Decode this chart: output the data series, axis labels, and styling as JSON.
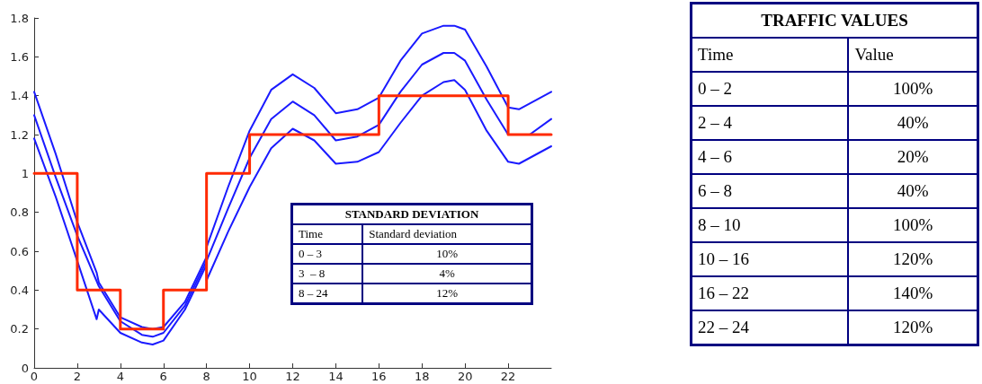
{
  "chart_data": {
    "type": "line",
    "xlim": [
      0,
      24
    ],
    "xticks": [
      0,
      2,
      4,
      6,
      8,
      10,
      12,
      14,
      16,
      18,
      20,
      22
    ],
    "ylim": [
      0,
      1.8
    ],
    "yticks": [
      0,
      0.2,
      0.4,
      0.6,
      0.8,
      1,
      1.2,
      1.4,
      1.6,
      1.8
    ],
    "grid": false,
    "marker": "none",
    "line_style": "solid",
    "series": [
      {
        "color": "#1a1aff",
        "x": [
          0,
          1,
          2,
          2.9,
          3,
          4,
          5,
          5.5,
          6,
          7,
          8,
          8,
          9,
          10,
          11,
          12,
          13,
          14,
          15,
          16,
          17,
          18,
          19,
          19.5,
          20,
          21,
          22,
          22.5,
          23,
          24
        ],
        "values": [
          1.42,
          1.1,
          0.75,
          0.49,
          0.44,
          0.26,
          0.21,
          0.2,
          0.21,
          0.34,
          0.57,
          0.62,
          0.93,
          1.22,
          1.43,
          1.51,
          1.44,
          1.31,
          1.33,
          1.39,
          1.58,
          1.72,
          1.76,
          1.76,
          1.74,
          1.55,
          1.34,
          1.33,
          1.36,
          1.42
        ]
      },
      {
        "color": "#1a1aff",
        "x": [
          0,
          1,
          2,
          3,
          4,
          5,
          5.5,
          6,
          7,
          8,
          9,
          10,
          11,
          12,
          13,
          14,
          15,
          16,
          17,
          18,
          19,
          19.5,
          20,
          21,
          22,
          23,
          24
        ],
        "values": [
          1.3,
          0.98,
          0.68,
          0.42,
          0.24,
          0.17,
          0.16,
          0.18,
          0.32,
          0.55,
          0.82,
          1.08,
          1.28,
          1.37,
          1.3,
          1.17,
          1.19,
          1.25,
          1.42,
          1.56,
          1.62,
          1.62,
          1.58,
          1.38,
          1.2,
          1.2,
          1.28
        ]
      },
      {
        "color": "#1a1aff",
        "x": [
          0,
          1,
          2,
          2.9,
          3,
          4,
          5,
          5.5,
          6,
          7,
          8,
          8,
          9,
          10,
          11,
          12,
          13,
          14,
          15,
          16,
          17,
          18,
          19,
          19.5,
          20,
          21,
          22,
          22.5,
          23,
          24
        ],
        "values": [
          1.18,
          0.88,
          0.55,
          0.25,
          0.3,
          0.18,
          0.13,
          0.12,
          0.14,
          0.3,
          0.53,
          0.45,
          0.7,
          0.93,
          1.13,
          1.23,
          1.17,
          1.05,
          1.06,
          1.11,
          1.26,
          1.4,
          1.47,
          1.48,
          1.43,
          1.22,
          1.06,
          1.05,
          1.08,
          1.14
        ]
      },
      {
        "type": "step",
        "color": "#ff2a00",
        "x": [
          0,
          2,
          4,
          6,
          8,
          10,
          16,
          22,
          24
        ],
        "values": [
          1,
          0.4,
          0.2,
          0.4,
          1,
          1.2,
          1.4,
          1.2,
          1.2
        ]
      }
    ],
    "annotations": [
      "STANDARD DEVIATION",
      "Time",
      "Standard deviation",
      "0 – 3",
      "10%",
      "3  – 8",
      "4%",
      "8 – 24",
      "12%",
      "TRAFFIC VALUES",
      "Time",
      "Value",
      "0 – 2",
      "100%",
      "2 – 4",
      "40%",
      "4 – 6",
      "20%",
      "6 – 8",
      "40%",
      "8 – 10",
      "100%",
      "10 – 16",
      "120%",
      "16 – 22",
      "140%",
      "22 – 24",
      "120%"
    ]
  }
}
